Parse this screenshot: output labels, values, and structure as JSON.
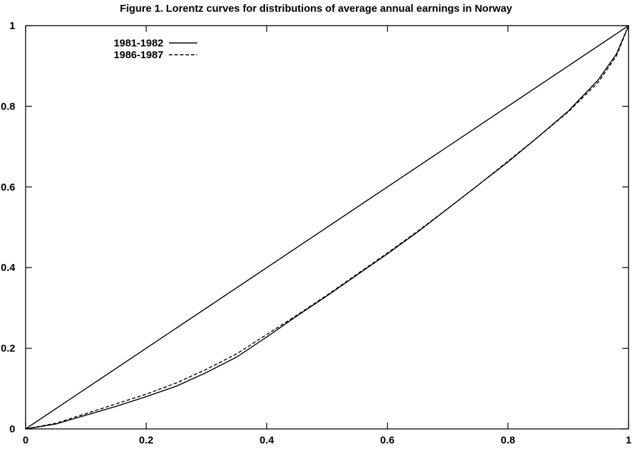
{
  "chart_data": {
    "type": "line",
    "title": "Figure 1.  Lorentz curves for distributions of average annual earnings in Norway",
    "xlabel": "",
    "ylabel": "",
    "xlim": [
      0,
      1
    ],
    "ylim": [
      0,
      1
    ],
    "x_ticks": [
      "0",
      "0.2",
      "0.4",
      "0.6",
      "0.8",
      "1"
    ],
    "y_ticks": [
      "0",
      "0.2",
      "0.4",
      "0.6",
      "0.8",
      "1"
    ],
    "grid": false,
    "legend_position": "top-left",
    "equality_line": {
      "x": [
        0,
        1
      ],
      "y": [
        0,
        1
      ]
    },
    "series": [
      {
        "name": "1981-1982",
        "style": "solid",
        "color": "#000000",
        "x": [
          0,
          0.05,
          0.1,
          0.15,
          0.2,
          0.25,
          0.3,
          0.35,
          0.4,
          0.45,
          0.5,
          0.55,
          0.6,
          0.65,
          0.7,
          0.75,
          0.8,
          0.85,
          0.9,
          0.95,
          0.98,
          1
        ],
        "y": [
          0,
          0.012,
          0.034,
          0.056,
          0.08,
          0.106,
          0.14,
          0.178,
          0.228,
          0.28,
          0.33,
          0.382,
          0.434,
          0.488,
          0.546,
          0.604,
          0.662,
          0.724,
          0.788,
          0.866,
          0.93,
          1
        ]
      },
      {
        "name": "1986-1987",
        "style": "dashed",
        "color": "#000000",
        "x": [
          0,
          0.05,
          0.1,
          0.15,
          0.2,
          0.25,
          0.3,
          0.35,
          0.4,
          0.45,
          0.5,
          0.55,
          0.6,
          0.65,
          0.7,
          0.75,
          0.8,
          0.85,
          0.9,
          0.95,
          0.98,
          1
        ],
        "y": [
          0,
          0.014,
          0.038,
          0.062,
          0.086,
          0.114,
          0.148,
          0.186,
          0.234,
          0.282,
          0.332,
          0.384,
          0.436,
          0.49,
          0.546,
          0.604,
          0.664,
          0.724,
          0.786,
          0.86,
          0.925,
          1
        ]
      }
    ]
  }
}
